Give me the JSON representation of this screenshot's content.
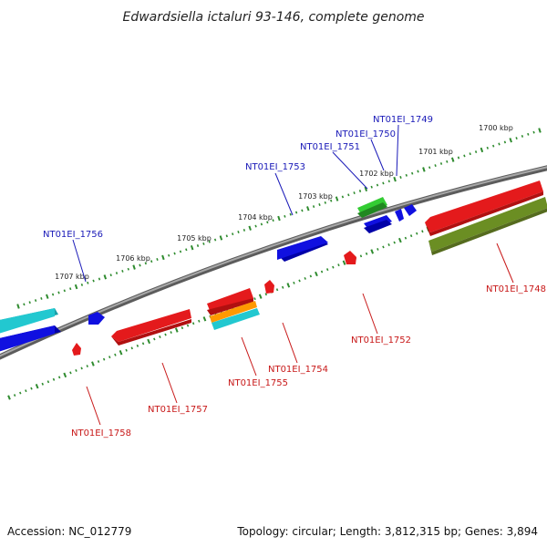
{
  "title": "Edwardsiella ictaluri 93-146, complete genome",
  "accession": "Accession: NC_012779",
  "summary": "Topology: circular; Length: 3,812,315 bp; Genes: 3,894",
  "colors": {
    "backbone": "#7a7a7a",
    "tick": "#2e8b2e",
    "top_label": "#1a1ab8",
    "bottom_label": "#c81818",
    "red": "#e41a1c",
    "blue": "#1010e0",
    "cyan": "#22c8d0",
    "green": "#33cc33",
    "olive": "#6b8e23",
    "orange": "#ff9900"
  },
  "kbp_markers": [
    "1700 kbp",
    "1701 kbp",
    "1702 kbp",
    "1703 kbp",
    "1704 kbp",
    "1705 kbp",
    "1706 kbp",
    "1707 kbp"
  ],
  "top_genes": [
    "NT01EI_1749",
    "NT01EI_1750",
    "NT01EI_1751",
    "NT01EI_1753",
    "NT01EI_1756"
  ],
  "bottom_genes": [
    "NT01EI_1748",
    "NT01EI_1752",
    "NT01EI_1754",
    "NT01EI_1755",
    "NT01EI_1757",
    "NT01EI_1758"
  ],
  "features": [
    {
      "name": "forward-feature-1",
      "color": "blue"
    },
    {
      "name": "forward-feature-2",
      "color": "cyan"
    },
    {
      "name": "forward-feature-3",
      "color": "blue"
    },
    {
      "name": "forward-feature-4",
      "color": "blue"
    },
    {
      "name": "forward-feature-5",
      "color": "green"
    },
    {
      "name": "forward-feature-6",
      "color": "blue"
    },
    {
      "name": "forward-feature-7",
      "color": "blue"
    },
    {
      "name": "forward-feature-8",
      "color": "blue"
    },
    {
      "name": "reverse-feature-1",
      "color": "red"
    },
    {
      "name": "reverse-feature-2",
      "color": "red"
    },
    {
      "name": "reverse-feature-3",
      "color": "red"
    },
    {
      "name": "reverse-feature-4",
      "color": "orange"
    },
    {
      "name": "reverse-feature-5",
      "color": "cyan"
    },
    {
      "name": "reverse-feature-6",
      "color": "red"
    },
    {
      "name": "reverse-feature-7",
      "color": "red"
    },
    {
      "name": "reverse-feature-8",
      "color": "red"
    },
    {
      "name": "reverse-feature-9",
      "color": "olive"
    }
  ]
}
